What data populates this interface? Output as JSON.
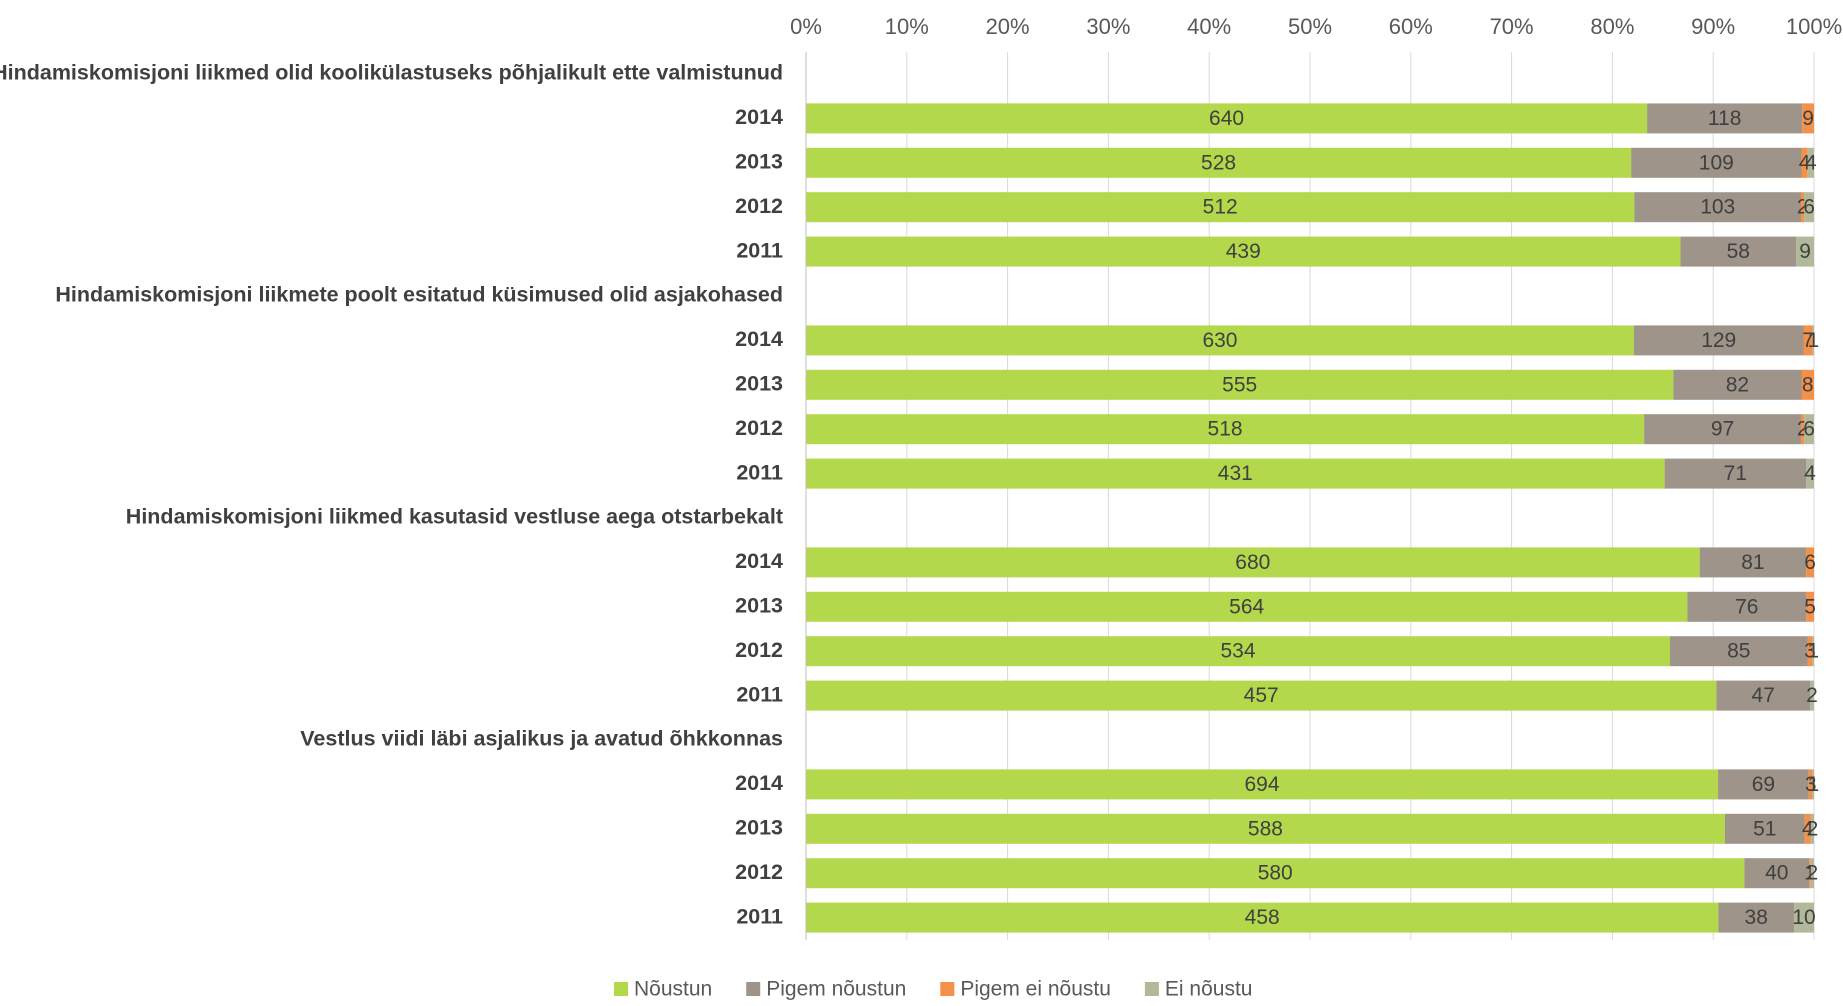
{
  "chart_data": {
    "type": "bar",
    "orientation": "horizontal",
    "stacked": "percent",
    "title": "",
    "xlabel": "",
    "ylabel": "",
    "xlim": [
      0,
      100
    ],
    "x_ticks": [
      "0%",
      "10%",
      "20%",
      "30%",
      "40%",
      "50%",
      "60%",
      "70%",
      "80%",
      "90%",
      "100%"
    ],
    "grid": true,
    "legend_position": "bottom",
    "colors": {
      "Nõustun": "#b3d84b",
      "Pigem nõustun": "#9e948a",
      "Pigem ei nõustu": "#f39049",
      "Ei nõustu": "#b0b999"
    },
    "series_names": [
      "Nõustun",
      "Pigem nõustun",
      "Pigem ei nõustu",
      "Ei nõustu"
    ],
    "groups": [
      {
        "label": "Hindamiskomisjoni liikmed olid koolikülastuseks põhjalikult ette valmistunud",
        "rows": [
          {
            "year": "2014",
            "values": [
              640,
              118,
              9,
              0
            ]
          },
          {
            "year": "2013",
            "values": [
              528,
              109,
              4,
              4
            ]
          },
          {
            "year": "2012",
            "values": [
              512,
              103,
              2,
              6
            ]
          },
          {
            "year": "2011",
            "values": [
              439,
              58,
              0,
              9
            ]
          }
        ]
      },
      {
        "label": "Hindamiskomisjoni liikmete poolt esitatud küsimused olid asjakohased",
        "rows": [
          {
            "year": "2014",
            "values": [
              630,
              129,
              7,
              1
            ]
          },
          {
            "year": "2013",
            "values": [
              555,
              82,
              8,
              0
            ]
          },
          {
            "year": "2012",
            "values": [
              518,
              97,
              2,
              6
            ]
          },
          {
            "year": "2011",
            "values": [
              431,
              71,
              0,
              4
            ]
          }
        ]
      },
      {
        "label": "Hindamiskomisjoni liikmed kasutasid vestluse aega otstarbekalt",
        "rows": [
          {
            "year": "2014",
            "values": [
              680,
              81,
              6,
              0
            ]
          },
          {
            "year": "2013",
            "values": [
              564,
              76,
              5,
              0
            ]
          },
          {
            "year": "2012",
            "values": [
              534,
              85,
              3,
              1
            ]
          },
          {
            "year": "2011",
            "values": [
              457,
              47,
              0,
              2
            ]
          }
        ]
      },
      {
        "label": "Vestlus viidi läbi asjalikus ja avatud õhkkonnas",
        "rows": [
          {
            "year": "2014",
            "values": [
              694,
              69,
              3,
              1
            ]
          },
          {
            "year": "2013",
            "values": [
              588,
              51,
              4,
              2
            ]
          },
          {
            "year": "2012",
            "values": [
              580,
              40,
              1,
              2
            ]
          },
          {
            "year": "2011",
            "values": [
              458,
              38,
              0,
              10
            ]
          }
        ]
      }
    ]
  }
}
